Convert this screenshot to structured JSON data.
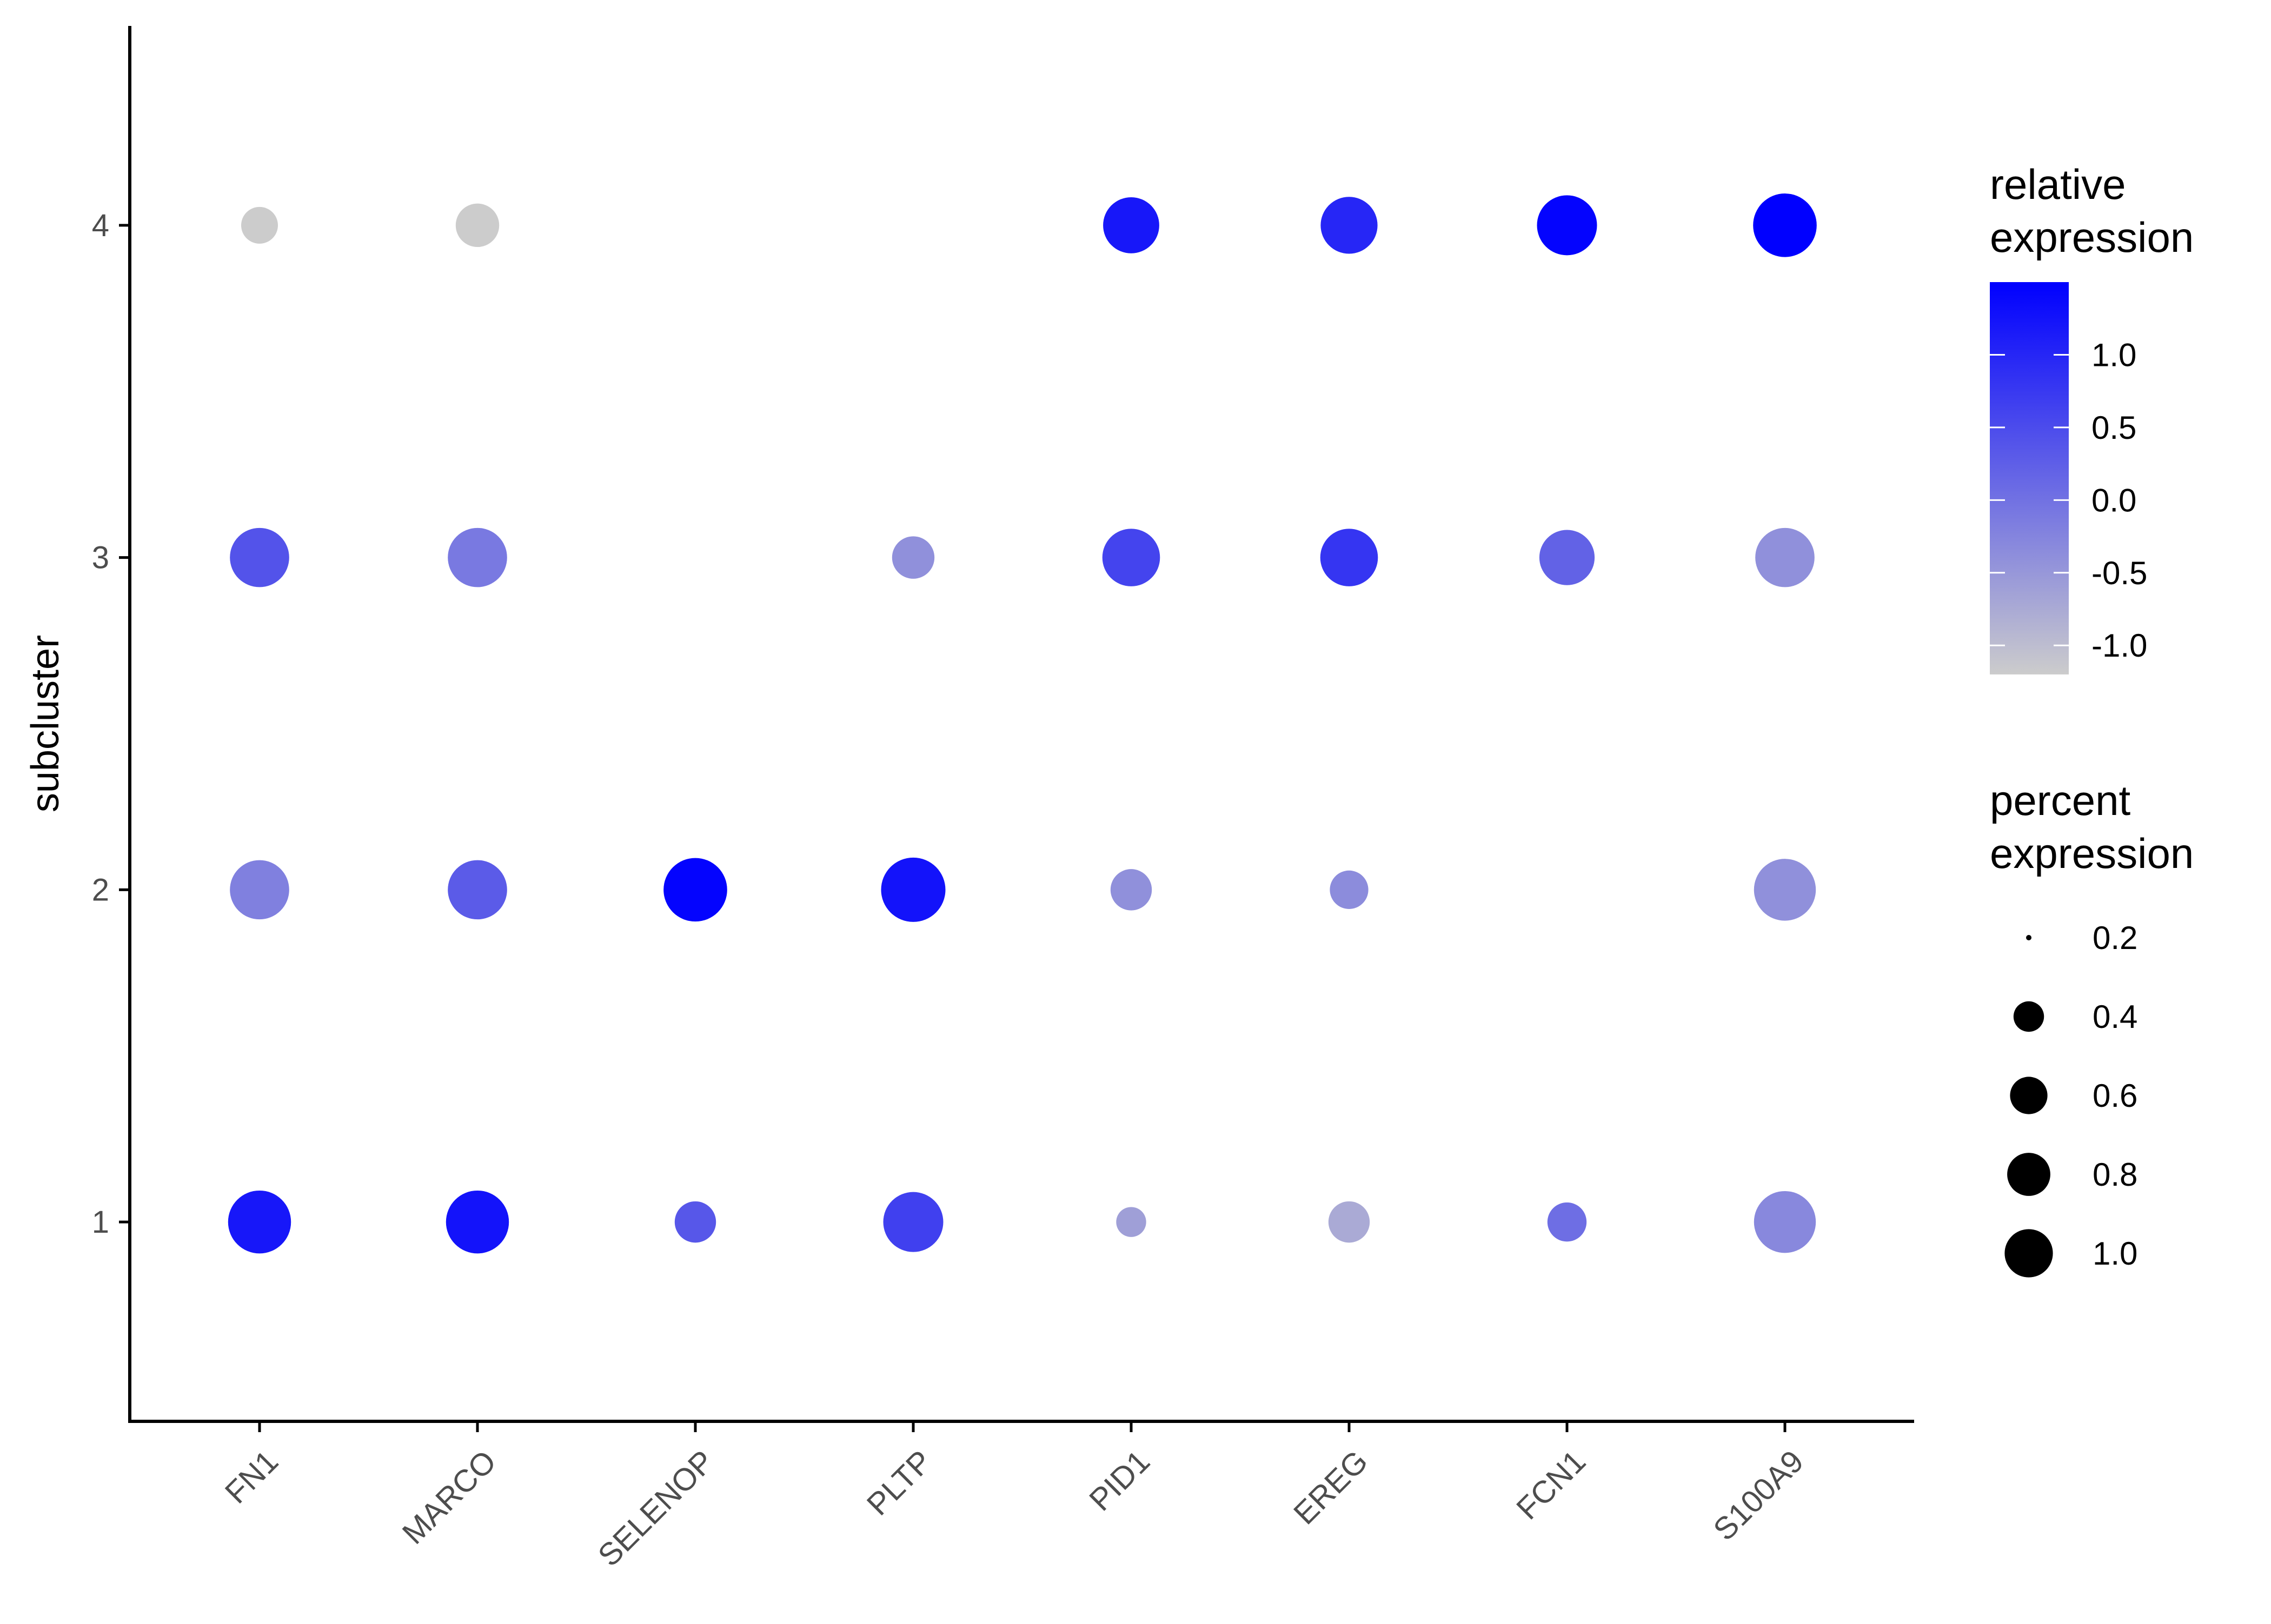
{
  "chart_data": {
    "type": "dot-plot",
    "title": "",
    "xlabel": "",
    "ylabel": "subcluster",
    "genes": [
      "FN1",
      "MARCO",
      "SELENOP",
      "PLTP",
      "PID1",
      "EREG",
      "FCN1",
      "S100A9"
    ],
    "subclusters": [
      "1",
      "2",
      "3",
      "4"
    ],
    "ylim": [
      0.4,
      4.6
    ],
    "grid": false,
    "points": [
      {
        "gene": "FN1",
        "subcluster": 1,
        "percent": 0.88,
        "relative": 1.2
      },
      {
        "gene": "FN1",
        "subcluster": 2,
        "percent": 0.78,
        "relative": -0.2
      },
      {
        "gene": "FN1",
        "subcluster": 3,
        "percent": 0.78,
        "relative": 0.4
      },
      {
        "gene": "FN1",
        "subcluster": 4,
        "percent": 0.3,
        "relative": -1.2
      },
      {
        "gene": "MARCO",
        "subcluster": 1,
        "percent": 0.88,
        "relative": 1.25
      },
      {
        "gene": "MARCO",
        "subcluster": 2,
        "percent": 0.78,
        "relative": 0.3
      },
      {
        "gene": "MARCO",
        "subcluster": 3,
        "percent": 0.78,
        "relative": -0.1
      },
      {
        "gene": "MARCO",
        "subcluster": 4,
        "percent": 0.42,
        "relative": -1.2
      },
      {
        "gene": "SELENOP",
        "subcluster": 1,
        "percent": 0.38,
        "relative": 0.35
      },
      {
        "gene": "SELENOP",
        "subcluster": 2,
        "percent": 0.9,
        "relative": 1.45
      },
      {
        "gene": "PLTP",
        "subcluster": 1,
        "percent": 0.8,
        "relative": 0.65
      },
      {
        "gene": "PLTP",
        "subcluster": 2,
        "percent": 0.92,
        "relative": 1.25
      },
      {
        "gene": "PLTP",
        "subcluster": 3,
        "percent": 0.4,
        "relative": -0.4
      },
      {
        "gene": "PID1",
        "subcluster": 1,
        "percent": 0.2,
        "relative": -0.6
      },
      {
        "gene": "PID1",
        "subcluster": 2,
        "percent": 0.38,
        "relative": -0.4
      },
      {
        "gene": "PID1",
        "subcluster": 3,
        "percent": 0.74,
        "relative": 0.6
      },
      {
        "gene": "PID1",
        "subcluster": 4,
        "percent": 0.7,
        "relative": 1.2
      },
      {
        "gene": "EREG",
        "subcluster": 1,
        "percent": 0.38,
        "relative": -0.75
      },
      {
        "gene": "EREG",
        "subcluster": 2,
        "percent": 0.33,
        "relative": -0.35
      },
      {
        "gene": "EREG",
        "subcluster": 3,
        "percent": 0.74,
        "relative": 0.8
      },
      {
        "gene": "EREG",
        "subcluster": 4,
        "percent": 0.72,
        "relative": 1.0
      },
      {
        "gene": "FCN1",
        "subcluster": 1,
        "percent": 0.34,
        "relative": 0.05
      },
      {
        "gene": "FCN1",
        "subcluster": 3,
        "percent": 0.68,
        "relative": 0.2
      },
      {
        "gene": "FCN1",
        "subcluster": 4,
        "percent": 0.8,
        "relative": 1.45
      },
      {
        "gene": "S100A9",
        "subcluster": 1,
        "percent": 0.85,
        "relative": -0.3
      },
      {
        "gene": "S100A9",
        "subcluster": 2,
        "percent": 0.85,
        "relative": -0.4
      },
      {
        "gene": "S100A9",
        "subcluster": 3,
        "percent": 0.78,
        "relative": -0.4
      },
      {
        "gene": "S100A9",
        "subcluster": 4,
        "percent": 0.9,
        "relative": 1.5
      }
    ],
    "color_legend": {
      "title": [
        "relative",
        "expression"
      ],
      "range": [
        -1.2,
        1.5
      ],
      "ticks": [
        1.0,
        0.5,
        0.0,
        -0.5,
        -1.0
      ],
      "tick_labels": [
        "1.0",
        "0.5",
        "0.0",
        "-0.5",
        "-1.0"
      ],
      "low_color": "#cccccc",
      "high_color": "#0000ff"
    },
    "size_legend": {
      "title": [
        "percent",
        "expression"
      ],
      "values": [
        0.2,
        0.4,
        0.6,
        0.8,
        1.0
      ],
      "labels": [
        "0.2",
        "0.4",
        "0.6",
        "0.8",
        "1.0"
      ]
    },
    "colors": {
      "axis": "#000000",
      "tick_text": "#4d4d4d",
      "legend_marker": "#000000",
      "background": "#ffffff"
    }
  }
}
